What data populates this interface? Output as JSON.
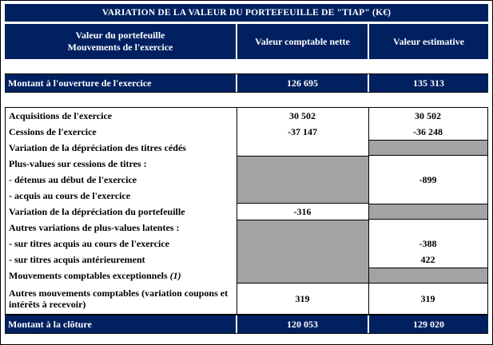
{
  "colors": {
    "navy": "#002060",
    "gray": "#a3a3a3",
    "border": "#000000",
    "text_on_navy": "#ffffff"
  },
  "title": "VARIATION DE LA VALEUR DU PORTEFEUILLE DE \"TIAP\" (K€)",
  "header": {
    "portfolio_line1": "Valeur du portefeuille",
    "portfolio_line2": "Mouvements de l'exercice",
    "book_value": "Valeur comptable nette",
    "estimated_value": "Valeur estimative"
  },
  "opening_row": {
    "label": "Montant à l'ouverture de l'exercice",
    "book_value": "126 695",
    "estimated_value": "135 313"
  },
  "body_rows": [
    {
      "label": "Acquisitions de l'exercice",
      "book_value": "30 502",
      "estimated_value": "30 502"
    },
    {
      "label": "Cessions de l'exercice",
      "book_value": "-37 147",
      "estimated_value": "-36 248"
    },
    {
      "label": "Variation de la dépréciation des titres cédés"
    },
    {
      "label": "Plus-values sur cessions de titres :"
    },
    {
      "label": "- détenus au début de l'exercice",
      "estimated_value": "-899"
    },
    {
      "label": "- acquis au cours de l'exercice"
    },
    {
      "label": "Variation de la dépréciation du portefeuille",
      "book_value": "-316"
    },
    {
      "label": "Autres variations de plus-values latentes :"
    },
    {
      "label": "- sur titres acquis au cours de l'exercice",
      "estimated_value": "-388"
    },
    {
      "label": "- sur titres acquis antérieurement",
      "estimated_value": "422"
    },
    {
      "label": "Mouvements comptables exceptionnels",
      "label_note": "(1)"
    },
    {
      "label": "Autres mouvements comptables (variation coupons et intérêts à recevoir)",
      "book_value": "319",
      "estimated_value": "319"
    }
  ],
  "closing_row": {
    "label": "Montant à la clôture",
    "book_value": "120 053",
    "estimated_value": "129 020"
  }
}
